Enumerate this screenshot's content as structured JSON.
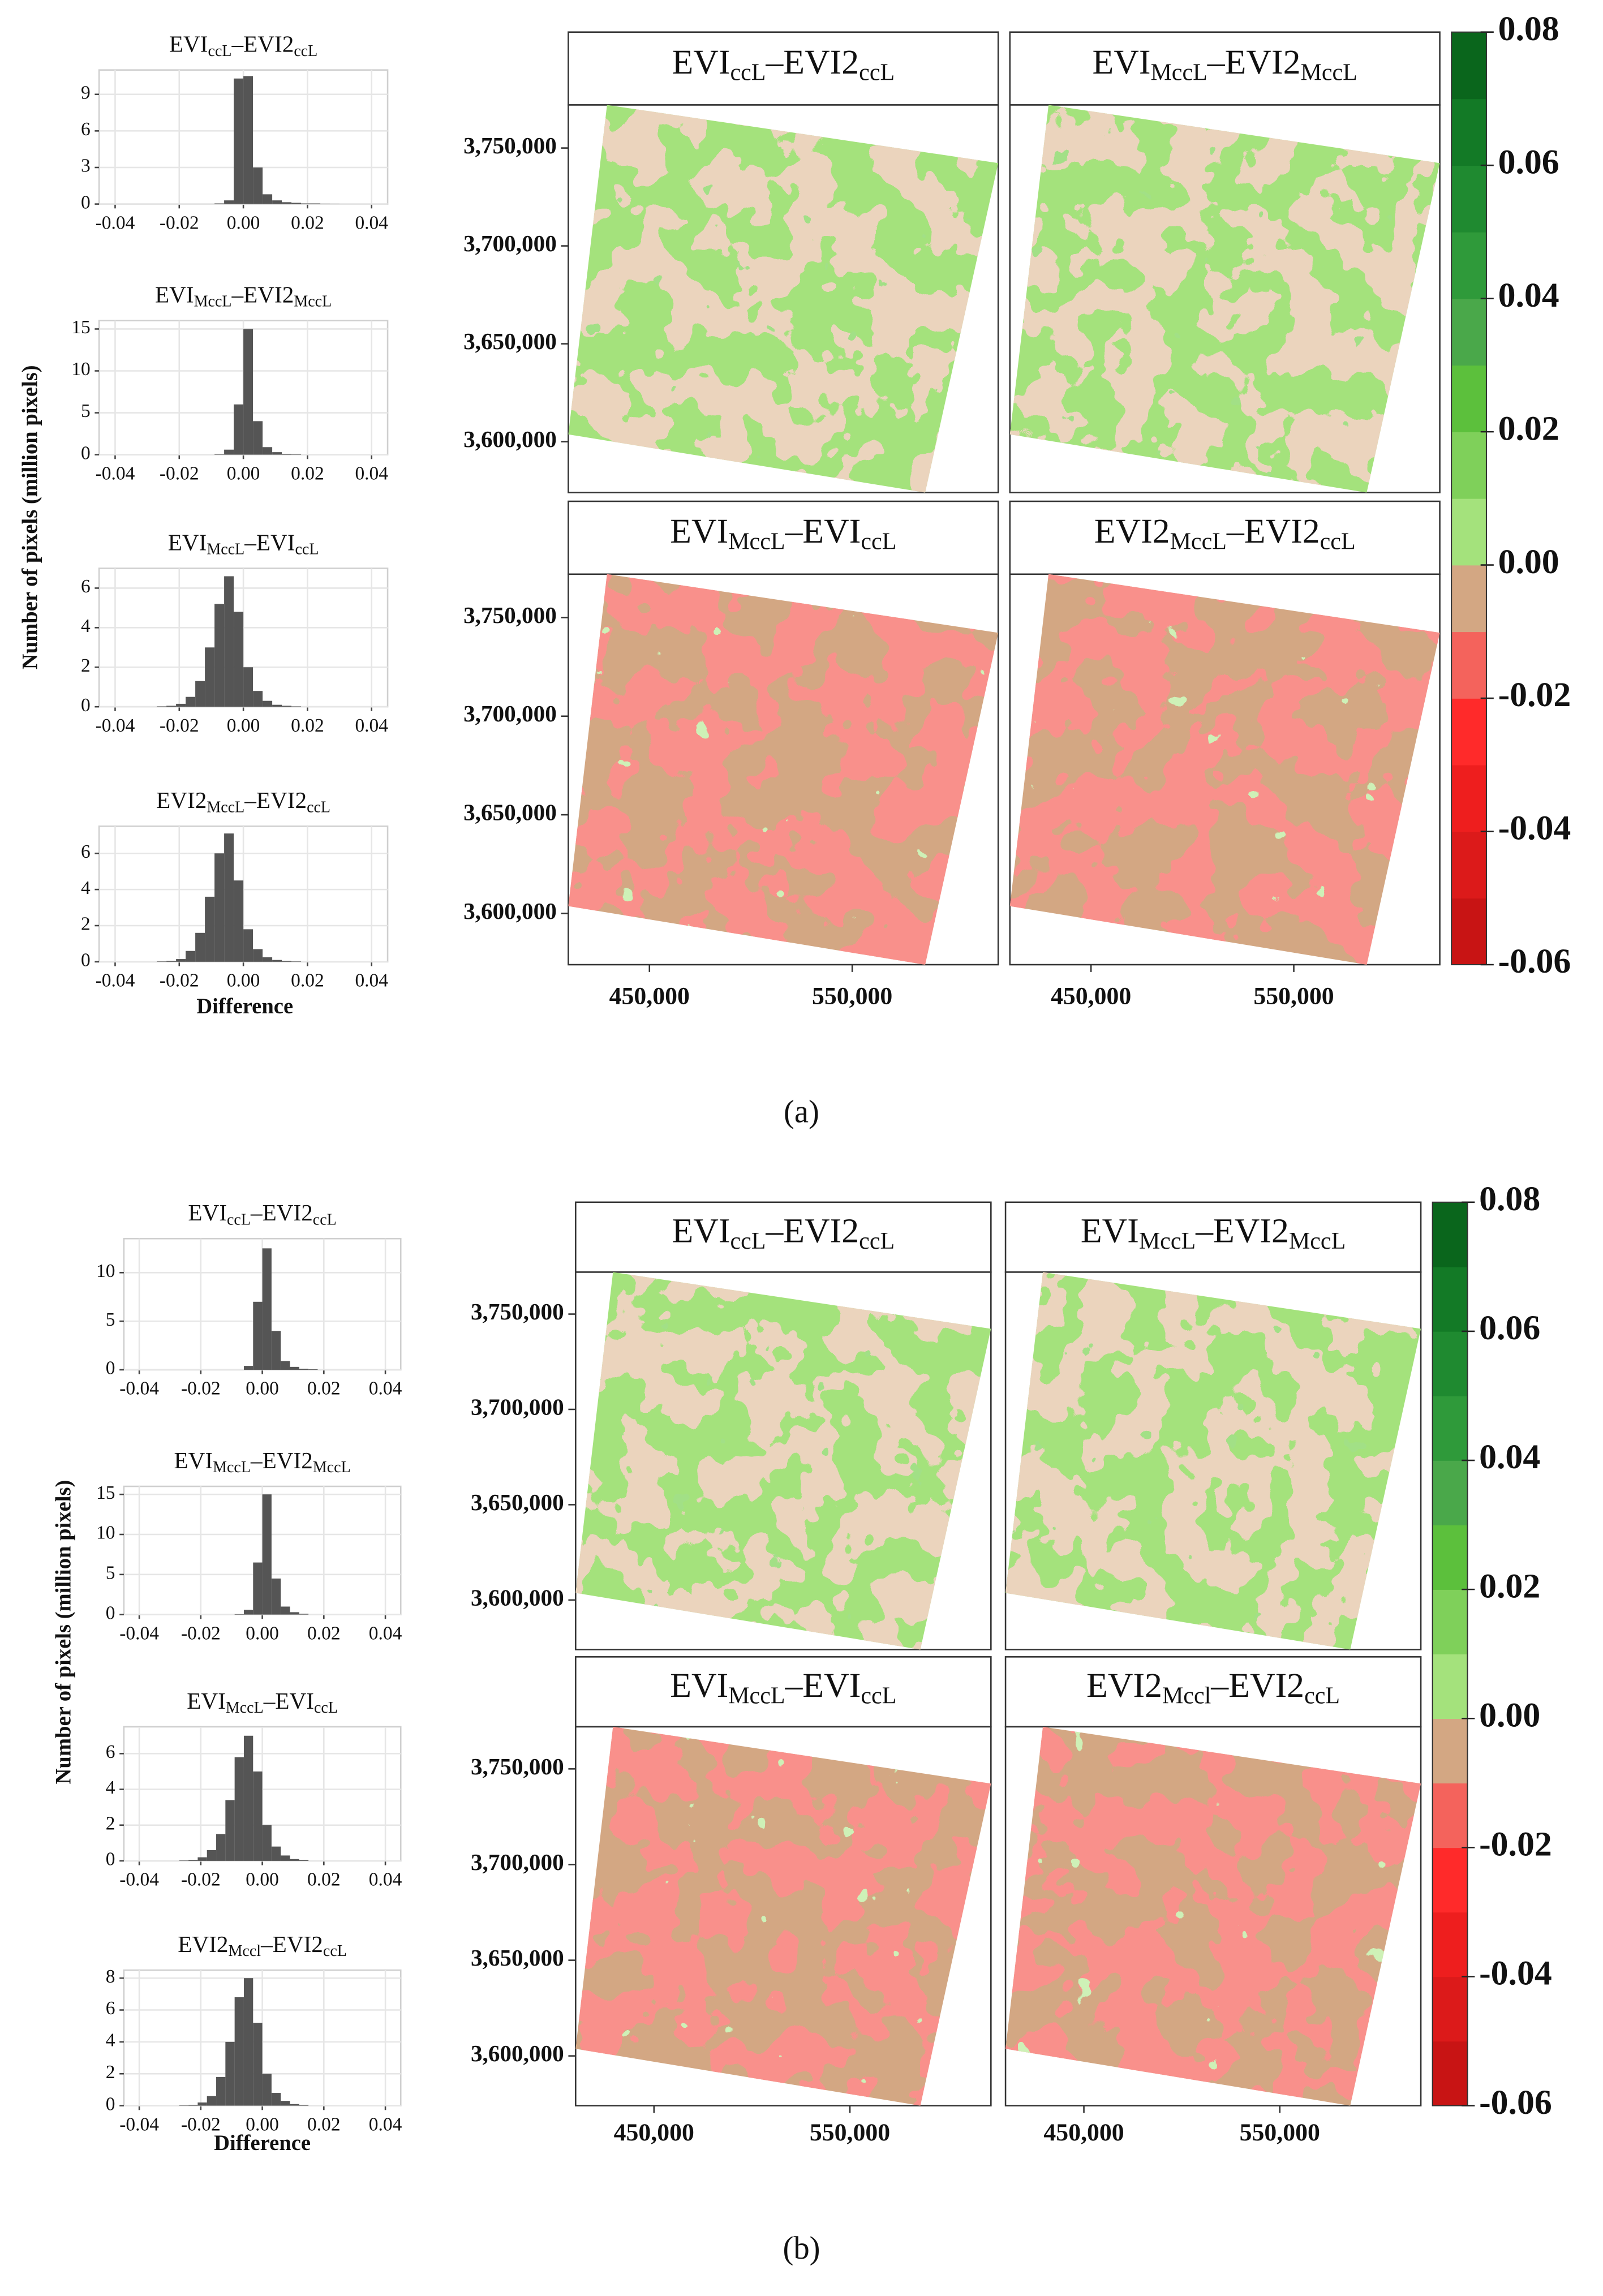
{
  "panels": [
    {
      "label": "(a)",
      "y_label": "Number of pixels (million pixels)",
      "x_label": "Difference",
      "histograms": [
        {
          "type": "histogram",
          "title": [
            "EVI",
            "ccL",
            "–EVI2",
            "ccL"
          ],
          "color": "#555555",
          "bins": [
            -0.03,
            -0.027,
            -0.024,
            -0.021,
            -0.018,
            -0.015,
            -0.012,
            -0.009,
            -0.006,
            -0.003,
            0,
            0.003,
            0.006,
            0.009,
            0.012,
            0.015,
            0.018,
            0.021,
            0.024,
            0.027,
            0.03
          ],
          "counts": [
            0,
            0,
            0,
            0,
            0,
            0,
            0,
            0.05,
            0.3,
            10.3,
            10.5,
            3,
            0.8,
            0.3,
            0.15,
            0.1,
            0.05,
            0.05,
            0.03,
            0.02
          ],
          "xlim": [
            -0.045,
            0.045
          ],
          "xticks": [
            -0.04,
            -0.02,
            {
              "value": 0,
              "label": "0.00"
            },
            0.02,
            0.04
          ],
          "ylim": [
            0,
            11
          ],
          "yticks": [
            0,
            3,
            6,
            9
          ],
          "grid": true
        },
        {
          "type": "histogram",
          "title": [
            "EVI",
            "MccL",
            "–EVI2",
            "MccL"
          ],
          "color": "#555555",
          "bins": [
            -0.03,
            -0.027,
            -0.024,
            -0.021,
            -0.018,
            -0.015,
            -0.012,
            -0.009,
            -0.006,
            -0.003,
            0,
            0.003,
            0.006,
            0.009,
            0.012,
            0.015,
            0.018,
            0.021,
            0.024,
            0.027,
            0.03
          ],
          "counts": [
            0,
            0,
            0,
            0,
            0,
            0,
            0,
            0.05,
            0.6,
            6,
            15,
            4,
            0.9,
            0.3,
            0.1,
            0.05,
            0,
            0,
            0,
            0
          ],
          "xlim": [
            -0.045,
            0.045
          ],
          "xticks": [
            -0.04,
            -0.02,
            {
              "value": 0,
              "label": "0.00"
            },
            0.02,
            0.04
          ],
          "ylim": [
            0,
            16
          ],
          "yticks": [
            0,
            5,
            10,
            15
          ],
          "grid": true
        },
        {
          "type": "histogram",
          "title": [
            "EVI",
            "MccL",
            "–EVI",
            "ccL"
          ],
          "color": "#555555",
          "bins": [
            -0.03,
            -0.027,
            -0.024,
            -0.021,
            -0.018,
            -0.015,
            -0.012,
            -0.009,
            -0.006,
            -0.003,
            0,
            0.003,
            0.006,
            0.009,
            0.012,
            0.015,
            0.018,
            0.021,
            0.024,
            0.027,
            0.03
          ],
          "counts": [
            0,
            0.02,
            0.05,
            0.15,
            0.5,
            1.3,
            3,
            5.2,
            6.6,
            4.8,
            2,
            0.8,
            0.3,
            0.1,
            0.05,
            0.02,
            0,
            0,
            0,
            0
          ],
          "xlim": [
            -0.045,
            0.045
          ],
          "xticks": [
            -0.04,
            -0.02,
            {
              "value": 0,
              "label": "0.00"
            },
            0.02,
            0.04
          ],
          "ylim": [
            0,
            7
          ],
          "yticks": [
            0,
            2,
            4,
            6
          ],
          "grid": true
        },
        {
          "type": "histogram",
          "title": [
            "EVI2",
            "MccL",
            "–EVI2",
            "ccL"
          ],
          "color": "#555555",
          "bins": [
            -0.03,
            -0.027,
            -0.024,
            -0.021,
            -0.018,
            -0.015,
            -0.012,
            -0.009,
            -0.006,
            -0.003,
            0,
            0.003,
            0.006,
            0.009,
            0.012,
            0.015,
            0.018,
            0.021,
            0.024,
            0.027,
            0.03
          ],
          "counts": [
            0,
            0.02,
            0.05,
            0.15,
            0.6,
            1.6,
            3.6,
            6,
            7.1,
            4.5,
            1.8,
            0.7,
            0.25,
            0.1,
            0.05,
            0.02,
            0,
            0,
            0,
            0
          ],
          "xlim": [
            -0.045,
            0.045
          ],
          "xticks": [
            -0.04,
            -0.02,
            {
              "value": 0,
              "label": "0.00"
            },
            0.02,
            0.04
          ],
          "ylim": [
            0,
            7.5
          ],
          "yticks": [
            0,
            2,
            4,
            6
          ],
          "grid": true
        }
      ],
      "maps": {
        "xlim": [
          410000,
          622000
        ],
        "xticks": [
          {
            "value": 450000,
            "label": "450,000"
          },
          {
            "value": 550000,
            "label": "550,000"
          }
        ],
        "ylim": [
          3574000,
          3772000
        ],
        "yticks": [
          {
            "value": 3600000,
            "label": "3,600,000"
          },
          {
            "value": 3650000,
            "label": "3,650,000"
          },
          {
            "value": 3700000,
            "label": "3,700,000"
          },
          {
            "value": 3750000,
            "label": "3,750,000"
          }
        ]
      },
      "colorbar": {
        "lim": [
          -0.06,
          0.08
        ],
        "ticks": [
          {
            "value": -0.06,
            "label": "-0.06"
          },
          {
            "value": -0.04,
            "label": "-0.04"
          },
          {
            "value": -0.02,
            "label": "-0.02"
          },
          {
            "value": 0,
            "label": "0.00"
          },
          {
            "value": 0.02,
            "label": "0.02"
          },
          {
            "value": 0.04,
            "label": "0.04"
          },
          {
            "value": 0.06,
            "label": "0.06"
          },
          {
            "value": 0.08,
            "label": "0.08"
          }
        ],
        "colors": [
          "#c81414",
          "#dc1a1a",
          "#ee1e1e",
          "#ff2a2a",
          "#f4635c",
          "#d3a783",
          "#a4e27c",
          "#7fd05a",
          "#5cc03c",
          "#4aa84a",
          "#2f9a3a",
          "#1f8a30",
          "#137a26",
          "#0a661c"
        ]
      }
    },
    {
      "label": "(b)",
      "y_label": "Number of pixels (million pixels)",
      "x_label": "Difference",
      "histograms": [
        {
          "type": "histogram",
          "title": [
            "EVI",
            "ccL",
            "–EVI2",
            "ccL"
          ],
          "color": "#555555",
          "bins": [
            -0.03,
            -0.027,
            -0.024,
            -0.021,
            -0.018,
            -0.015,
            -0.012,
            -0.009,
            -0.006,
            -0.003,
            0,
            0.003,
            0.006,
            0.009,
            0.012,
            0.015,
            0.018,
            0.021,
            0.024,
            0.027,
            0.03
          ],
          "counts": [
            0,
            0,
            0,
            0,
            0,
            0,
            0,
            0,
            0.4,
            7,
            12.5,
            4,
            0.9,
            0.3,
            0.1,
            0.05,
            0,
            0,
            0,
            0
          ],
          "xlim": [
            -0.045,
            0.045
          ],
          "xticks": [
            -0.04,
            -0.02,
            {
              "value": 0,
              "label": "0.00"
            },
            0.02,
            0.04
          ],
          "ylim": [
            0,
            13.5
          ],
          "yticks": [
            0,
            5,
            10
          ],
          "grid": true
        },
        {
          "type": "histogram",
          "title": [
            "EVI",
            "MccL",
            "–EVI2",
            "MccL"
          ],
          "color": "#555555",
          "bins": [
            -0.03,
            -0.027,
            -0.024,
            -0.021,
            -0.018,
            -0.015,
            -0.012,
            -0.009,
            -0.006,
            -0.003,
            0,
            0.003,
            0.006,
            0.009,
            0.012,
            0.015,
            0.018,
            0.021,
            0.024,
            0.027,
            0.03
          ],
          "counts": [
            0,
            0,
            0,
            0,
            0,
            0,
            0,
            0.05,
            0.6,
            6.5,
            15,
            4.5,
            1,
            0.3,
            0.1,
            0,
            0,
            0,
            0,
            0
          ],
          "xlim": [
            -0.045,
            0.045
          ],
          "xticks": [
            -0.04,
            -0.02,
            {
              "value": 0,
              "label": "0.00"
            },
            0.02,
            0.04
          ],
          "ylim": [
            0,
            16
          ],
          "yticks": [
            0,
            5,
            10,
            15
          ],
          "grid": true
        },
        {
          "type": "histogram",
          "title": [
            "EVI",
            "MccL",
            "–EVI",
            "ccL"
          ],
          "color": "#555555",
          "bins": [
            -0.03,
            -0.027,
            -0.024,
            -0.021,
            -0.018,
            -0.015,
            -0.012,
            -0.009,
            -0.006,
            -0.003,
            0,
            0.003,
            0.006,
            0.009,
            0.012,
            0.015,
            0.018,
            0.021,
            0.024,
            0.027,
            0.03
          ],
          "counts": [
            0,
            0.02,
            0.05,
            0.2,
            0.6,
            1.5,
            3.4,
            5.8,
            7,
            5,
            2,
            0.8,
            0.3,
            0.1,
            0.05,
            0,
            0,
            0,
            0,
            0
          ],
          "xlim": [
            -0.045,
            0.045
          ],
          "xticks": [
            -0.04,
            -0.02,
            {
              "value": 0,
              "label": "0.00"
            },
            0.02,
            0.04
          ],
          "ylim": [
            0,
            7.5
          ],
          "yticks": [
            0,
            2,
            4,
            6
          ],
          "grid": true
        },
        {
          "type": "histogram",
          "title": [
            "EVI2",
            "Mccl",
            "–EVI2",
            "ccL"
          ],
          "color": "#555555",
          "bins": [
            -0.03,
            -0.027,
            -0.024,
            -0.021,
            -0.018,
            -0.015,
            -0.012,
            -0.009,
            -0.006,
            -0.003,
            0,
            0.003,
            0.006,
            0.009,
            0.012,
            0.015,
            0.018,
            0.021,
            0.024,
            0.027,
            0.03
          ],
          "counts": [
            0,
            0.02,
            0.05,
            0.2,
            0.6,
            1.8,
            4,
            6.8,
            8,
            5.2,
            2,
            0.8,
            0.3,
            0.1,
            0.05,
            0,
            0,
            0,
            0,
            0
          ],
          "xlim": [
            -0.045,
            0.045
          ],
          "xticks": [
            -0.04,
            -0.02,
            {
              "value": 0,
              "label": "0.00"
            },
            0.02,
            0.04
          ],
          "ylim": [
            0,
            8.5
          ],
          "yticks": [
            0,
            2,
            4,
            6,
            8
          ],
          "grid": true
        }
      ],
      "maps": {
        "xlim": [
          410000,
          622000
        ],
        "xticks": [
          {
            "value": 450000,
            "label": "450,000"
          },
          {
            "value": 550000,
            "label": "550,000"
          }
        ],
        "ylim": [
          3574000,
          3772000
        ],
        "yticks": [
          {
            "value": 3600000,
            "label": "3,600,000"
          },
          {
            "value": 3650000,
            "label": "3,650,000"
          },
          {
            "value": 3700000,
            "label": "3,700,000"
          },
          {
            "value": 3750000,
            "label": "3,750,000"
          }
        ]
      },
      "colorbar": {
        "lim": [
          -0.06,
          0.08
        ],
        "ticks": [
          {
            "value": -0.06,
            "label": "-0.06"
          },
          {
            "value": -0.04,
            "label": "-0.04"
          },
          {
            "value": -0.02,
            "label": "-0.02"
          },
          {
            "value": 0,
            "label": "0.00"
          },
          {
            "value": 0.02,
            "label": "0.02"
          },
          {
            "value": 0.04,
            "label": "0.04"
          },
          {
            "value": 0.06,
            "label": "0.06"
          },
          {
            "value": 0.08,
            "label": "0.08"
          }
        ],
        "colors": [
          "#c81414",
          "#dc1a1a",
          "#ee1e1e",
          "#ff2a2a",
          "#f4635c",
          "#d3a783",
          "#a4e27c",
          "#7fd05a",
          "#5cc03c",
          "#4aa84a",
          "#2f9a3a",
          "#1f8a30",
          "#137a26",
          "#0a661c"
        ]
      }
    }
  ]
}
